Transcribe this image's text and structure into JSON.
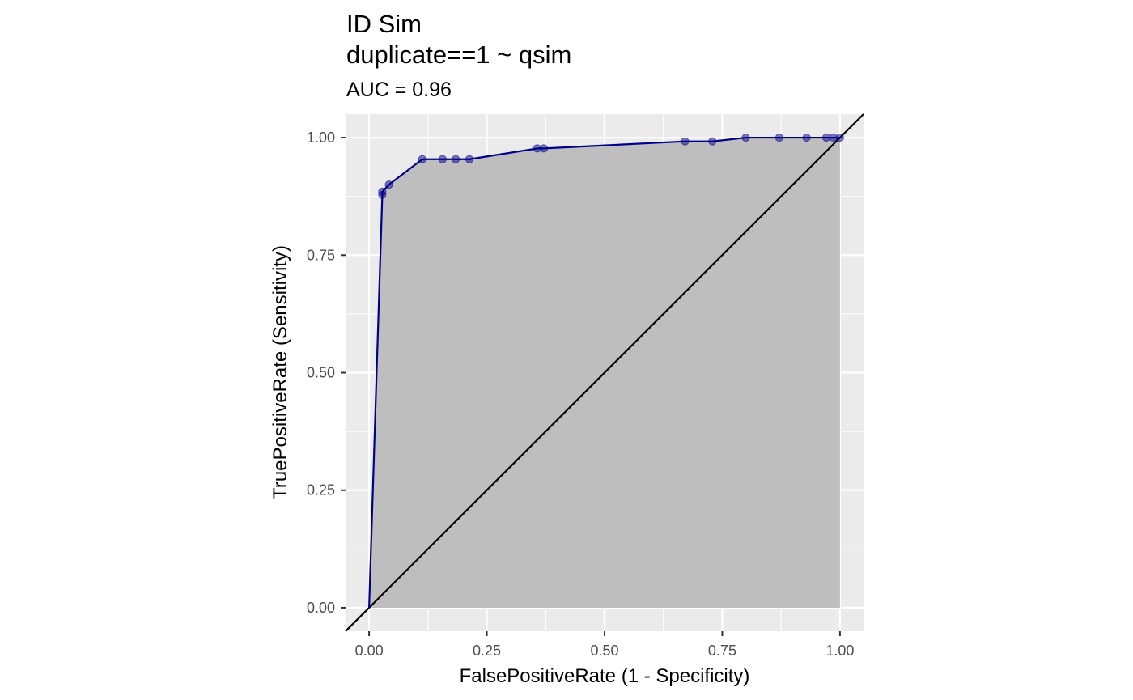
{
  "chart_data": {
    "type": "line",
    "title": "ID Sim",
    "title_line2": "duplicate==1 ~ qsim",
    "subtitle": "AUC = 0.96",
    "xlabel": "FalsePositiveRate (1 - Specificity)",
    "ylabel": "TruePositiveRate (Sensitivity)",
    "xlim": [
      -0.05,
      1.05
    ],
    "ylim": [
      -0.05,
      1.05
    ],
    "x_ticks": [
      "0.00",
      "0.25",
      "0.50",
      "0.75",
      "1.00"
    ],
    "y_ticks": [
      "0.00",
      "0.25",
      "0.50",
      "0.75",
      "1.00"
    ],
    "grid": true,
    "shaded_area_under_curve": true,
    "reference_line": {
      "from": [
        0,
        0
      ],
      "to": [
        1,
        1
      ]
    },
    "series": [
      {
        "x": [
          0.0,
          0.028,
          0.028,
          0.042,
          0.113,
          0.156,
          0.184,
          0.213,
          0.357,
          0.371,
          0.671,
          0.729,
          0.8,
          0.871,
          0.929,
          0.971,
          0.986,
          1.0
        ],
        "y": [
          0.0,
          0.878,
          0.885,
          0.9,
          0.954,
          0.954,
          0.954,
          0.954,
          0.977,
          0.977,
          0.992,
          0.992,
          1.0,
          1.0,
          1.0,
          1.0,
          1.0,
          1.0
        ]
      }
    ],
    "colors": {
      "panel_background": "#ebebeb",
      "grid": "#ffffff",
      "area_fill": "#bebebe",
      "curve": "#00008b",
      "points": "#00008b",
      "reference_line": "#000000"
    }
  }
}
